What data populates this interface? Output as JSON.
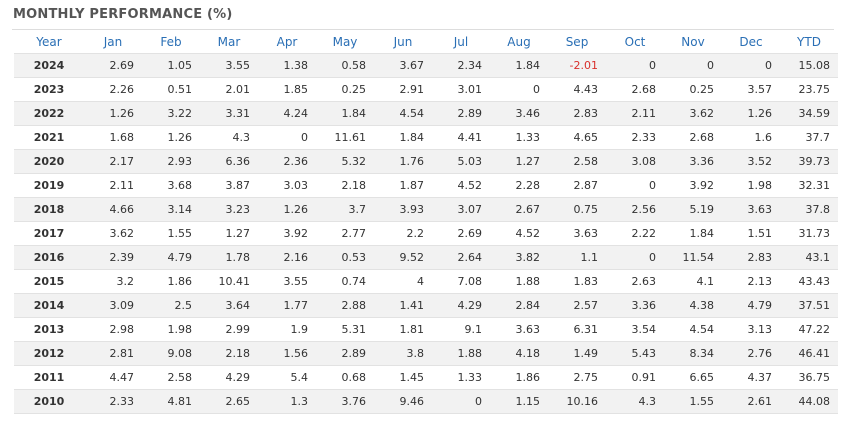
{
  "title": "MONTHLY PERFORMANCE (%)",
  "table": {
    "header": [
      "Year",
      "Jan",
      "Feb",
      "Mar",
      "Apr",
      "May",
      "Jun",
      "Jul",
      "Aug",
      "Sep",
      "Oct",
      "Nov",
      "Dec",
      "YTD"
    ],
    "rows": [
      [
        2024,
        2.69,
        1.05,
        3.55,
        1.38,
        0.58,
        3.67,
        2.34,
        1.84,
        -2.01,
        0,
        0,
        0,
        15.08
      ],
      [
        2023,
        2.26,
        0.51,
        2.01,
        1.85,
        0.25,
        2.91,
        3.01,
        0,
        4.43,
        2.68,
        0.25,
        3.57,
        23.75
      ],
      [
        2022,
        1.26,
        3.22,
        3.31,
        4.24,
        1.84,
        4.54,
        2.89,
        3.46,
        2.83,
        2.11,
        3.62,
        1.26,
        34.59
      ],
      [
        2021,
        1.68,
        1.26,
        4.3,
        0,
        11.61,
        1.84,
        4.41,
        1.33,
        4.65,
        2.33,
        2.68,
        1.6,
        37.7
      ],
      [
        2020,
        2.17,
        2.93,
        6.36,
        2.36,
        5.32,
        1.76,
        5.03,
        1.27,
        2.58,
        3.08,
        3.36,
        3.52,
        39.73
      ],
      [
        2019,
        2.11,
        3.68,
        3.87,
        3.03,
        2.18,
        1.87,
        4.52,
        2.28,
        2.87,
        0,
        3.92,
        1.98,
        32.31
      ],
      [
        2018,
        4.66,
        3.14,
        3.23,
        1.26,
        3.7,
        3.93,
        3.07,
        2.67,
        0.75,
        2.56,
        5.19,
        3.63,
        37.8
      ],
      [
        2017,
        3.62,
        1.55,
        1.27,
        3.92,
        2.77,
        2.2,
        2.69,
        4.52,
        3.63,
        2.22,
        1.84,
        1.51,
        31.73
      ],
      [
        2016,
        2.39,
        4.79,
        1.78,
        2.16,
        0.53,
        9.52,
        2.64,
        3.82,
        1.1,
        0,
        11.54,
        2.83,
        43.1
      ],
      [
        2015,
        3.2,
        1.86,
        10.41,
        3.55,
        0.74,
        4,
        7.08,
        1.88,
        1.83,
        2.63,
        4.1,
        2.13,
        43.43
      ],
      [
        2014,
        3.09,
        2.5,
        3.64,
        1.77,
        2.88,
        1.41,
        4.29,
        2.84,
        2.57,
        3.36,
        4.38,
        4.79,
        37.51
      ],
      [
        2013,
        2.98,
        1.98,
        2.99,
        1.9,
        5.31,
        1.81,
        9.1,
        3.63,
        6.31,
        3.54,
        4.54,
        3.13,
        47.22
      ],
      [
        2012,
        2.81,
        9.08,
        2.18,
        1.56,
        2.89,
        3.8,
        1.88,
        4.18,
        1.49,
        5.43,
        8.34,
        2.76,
        46.41
      ],
      [
        2011,
        4.47,
        2.58,
        4.29,
        5.4,
        0.68,
        1.45,
        1.33,
        1.86,
        2.75,
        0.91,
        6.65,
        4.37,
        36.75
      ],
      [
        2010,
        2.33,
        4.81,
        2.65,
        1.3,
        3.76,
        9.46,
        0,
        1.15,
        10.16,
        4.3,
        1.55,
        2.61,
        44.08
      ]
    ]
  }
}
